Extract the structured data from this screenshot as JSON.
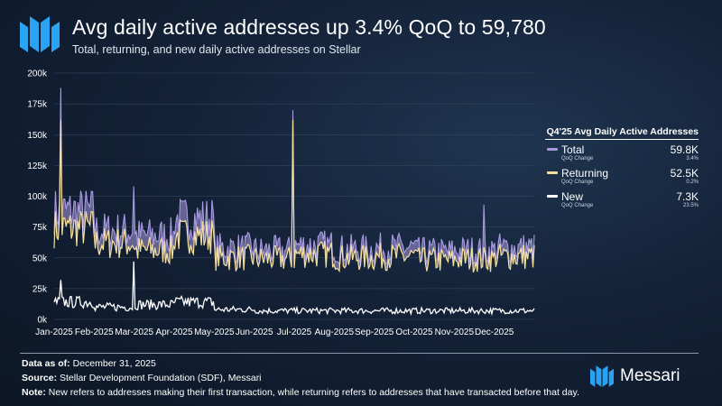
{
  "header": {
    "title": "Avg daily active addresses up 3.4% QoQ to 59,780",
    "subtitle": "Total, returning, and new daily active addresses on Stellar"
  },
  "legend": {
    "title": "Q4'25 Avg Daily Active Addresses",
    "items": [
      {
        "name": "Total",
        "value": "59.8K",
        "sub": "QoQ Change",
        "change": "3.4%",
        "color": "#a99ae0"
      },
      {
        "name": "Returning",
        "value": "52.5K",
        "sub": "QoQ Change",
        "change": "0.2%",
        "color": "#f5e0a0"
      },
      {
        "name": "New",
        "value": "7.3K",
        "sub": "QoQ Change",
        "change": "23.5%",
        "color": "#ffffff"
      }
    ]
  },
  "footer": {
    "data_as_of_label": "Data as of:",
    "data_as_of": "December 31, 2025",
    "source_label": "Source:",
    "source": "Stellar Development Foundation (SDF), Messari",
    "note_label": "Note:",
    "note": "New refers to addresses making their first transaction, while returning refers to addresses that have transacted before that day."
  },
  "brand": {
    "name": "Messari"
  },
  "chart_data": {
    "type": "area",
    "x_unit": "month",
    "categories": [
      "Jan-2025",
      "Feb-2025",
      "Mar-2025",
      "Apr-2025",
      "May-2025",
      "Jun-2025",
      "Jul-2025",
      "Aug-2025",
      "Sep-2025",
      "Oct-2025",
      "Nov-2025",
      "Dec-2025"
    ],
    "ylim": [
      0,
      200000
    ],
    "yticks": [
      0,
      25000,
      50000,
      75000,
      100000,
      125000,
      150000,
      175000,
      200000
    ],
    "ytick_labels": [
      "0k",
      "25k",
      "50k",
      "75k",
      "100k",
      "125k",
      "150k",
      "175k",
      "200k"
    ],
    "grid": true,
    "legend_position": "right",
    "series": [
      {
        "name": "Total",
        "color": "#a99ae0",
        "values": [
          88000,
          72000,
          68000,
          82000,
          58000,
          56000,
          60000,
          57000,
          58000,
          55000,
          56000,
          58000
        ]
      },
      {
        "name": "Returning",
        "color": "#f5e0a0",
        "values": [
          74000,
          62000,
          56000,
          68000,
          50000,
          49000,
          53000,
          50000,
          51000,
          48000,
          49000,
          51000
        ]
      },
      {
        "name": "New",
        "color": "#ffffff",
        "values": [
          14000,
          10000,
          12000,
          14000,
          8000,
          7000,
          7000,
          7000,
          7000,
          7000,
          7000,
          7000
        ]
      }
    ],
    "peaks": [
      {
        "series": "Total",
        "month": "Jan-2025",
        "value": 188000
      },
      {
        "series": "Returning",
        "month": "Jan-2025",
        "value": 162000
      },
      {
        "series": "Total",
        "month": "Jul-2025",
        "value": 170000
      },
      {
        "series": "Returning",
        "month": "Jul-2025",
        "value": 162000
      },
      {
        "series": "Total",
        "month": "Mar-2025",
        "value": 108000
      },
      {
        "series": "Total",
        "month": "Dec-2025",
        "value": 93000
      },
      {
        "series": "New",
        "month": "Mar-2025",
        "value": 47000
      },
      {
        "series": "New",
        "month": "Jan-2025",
        "value": 32000
      }
    ]
  }
}
